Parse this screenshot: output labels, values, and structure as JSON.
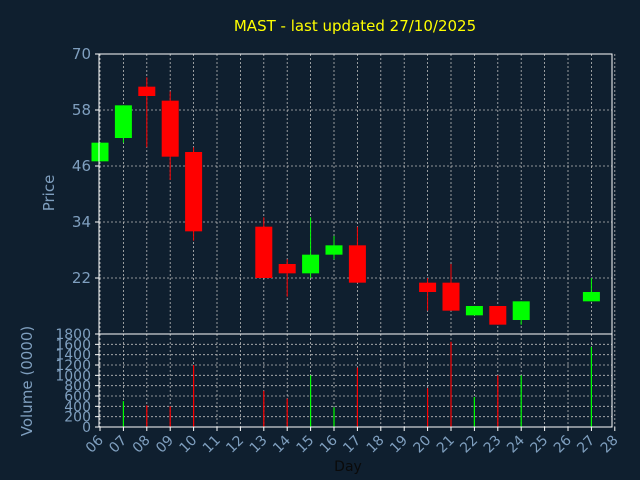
{
  "title": "MAST - last updated 27/10/2025",
  "colors": {
    "background": "#0f1f2f",
    "title": "#ffff00",
    "axis_label": "#7f9fbf",
    "tick_label": "#7f9fbf",
    "frame": "#ffffff",
    "grid": "#bbbbbb",
    "up": "#00ff00",
    "down": "#ff0000"
  },
  "chart_data": [
    {
      "type": "candlestick",
      "ylabel": "Price",
      "ylim": [
        10,
        70
      ],
      "yticks": [
        22,
        34,
        46,
        58,
        70
      ],
      "grid": true,
      "x_ticks": [
        "06",
        "07",
        "08",
        "09",
        "10",
        "11",
        "12",
        "13",
        "14",
        "15",
        "16",
        "17",
        "18",
        "19",
        "20",
        "21",
        "22",
        "23",
        "24",
        "25",
        "26",
        "27",
        "28"
      ],
      "candles": [
        {
          "day": "06",
          "open": 47,
          "high": 51,
          "low": 47,
          "close": 51
        },
        {
          "day": "07",
          "open": 52,
          "high": 59,
          "low": 51,
          "close": 59
        },
        {
          "day": "08",
          "open": 63,
          "high": 65,
          "low": 50,
          "close": 61
        },
        {
          "day": "09",
          "open": 60,
          "high": 62,
          "low": 43,
          "close": 48
        },
        {
          "day": "10",
          "open": 49,
          "high": 50,
          "low": 30,
          "close": 32
        },
        {
          "day": "13",
          "open": 33,
          "high": 35,
          "low": 22,
          "close": 22
        },
        {
          "day": "14",
          "open": 25,
          "high": 26,
          "low": 18,
          "close": 23
        },
        {
          "day": "15",
          "open": 23,
          "high": 35,
          "low": 22,
          "close": 27
        },
        {
          "day": "16",
          "open": 27,
          "high": 31,
          "low": 26,
          "close": 29
        },
        {
          "day": "17",
          "open": 29,
          "high": 33,
          "low": 21,
          "close": 21
        },
        {
          "day": "20",
          "open": 21,
          "high": 22,
          "low": 15,
          "close": 19
        },
        {
          "day": "21",
          "open": 21,
          "high": 25,
          "low": 15,
          "close": 15
        },
        {
          "day": "22",
          "open": 14,
          "high": 16,
          "low": 14,
          "close": 16
        },
        {
          "day": "23",
          "open": 16,
          "high": 16,
          "low": 12,
          "close": 12
        },
        {
          "day": "24",
          "open": 13,
          "high": 17,
          "low": 12,
          "close": 17
        },
        {
          "day": "27",
          "open": 17,
          "high": 22,
          "low": 17,
          "close": 19
        }
      ]
    },
    {
      "type": "bar",
      "ylabel": "Volume (0000)",
      "xlabel": "Day",
      "ylim": [
        0,
        1800
      ],
      "yticks": [
        0,
        200,
        400,
        600,
        800,
        1000,
        1200,
        1400,
        1600,
        1800
      ],
      "grid": true,
      "categories": [
        "06",
        "07",
        "08",
        "09",
        "10",
        "13",
        "14",
        "15",
        "16",
        "17",
        "20",
        "21",
        "22",
        "23",
        "24",
        "27"
      ],
      "values": [
        0,
        500,
        420,
        400,
        1200,
        700,
        550,
        1000,
        380,
        1150,
        750,
        1650,
        580,
        1000,
        1000,
        1550
      ]
    }
  ]
}
